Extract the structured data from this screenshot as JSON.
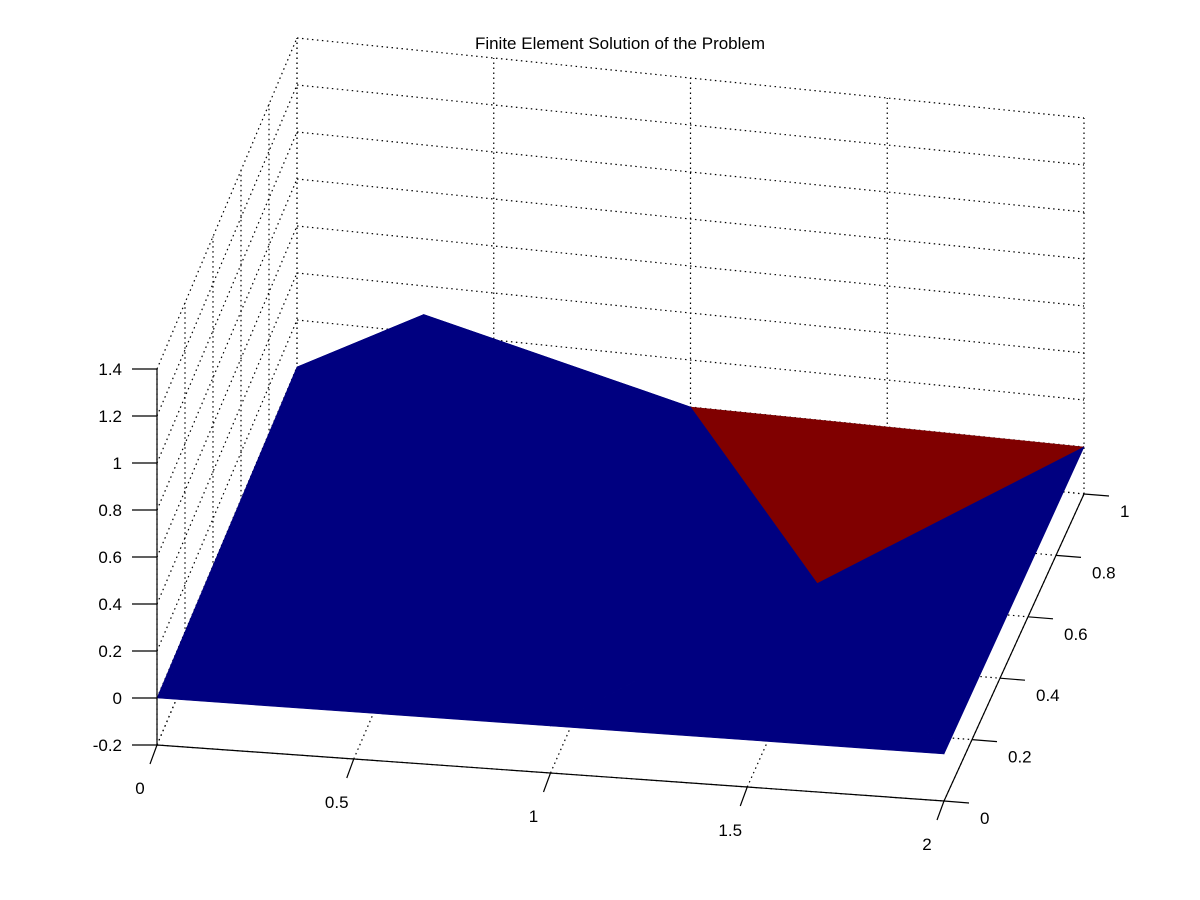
{
  "chart_data": {
    "type": "surface",
    "title": "Finite Element Solution of the Problem",
    "xlabel": "",
    "ylabel": "",
    "zlabel": "",
    "xlim": [
      0,
      2
    ],
    "ylim": [
      0,
      1
    ],
    "zlim": [
      -0.2,
      1.4
    ],
    "x_ticks": [
      "0",
      "0.5",
      "1",
      "1.5",
      "2"
    ],
    "y_ticks": [
      "0",
      "0.2",
      "0.4",
      "0.6",
      "0.8",
      "1"
    ],
    "z_ticks": [
      "-0.2",
      "0",
      "0.2",
      "0.4",
      "0.6",
      "0.8",
      "1",
      "1.2",
      "1.4"
    ],
    "grid": true,
    "nodes": [
      {
        "x": 0,
        "y": 0,
        "z": 0
      },
      {
        "x": 1,
        "y": 0,
        "z": 0
      },
      {
        "x": 2,
        "y": 0,
        "z": 0
      },
      {
        "x": 0.5,
        "y": 0.5,
        "z": 1
      },
      {
        "x": 1.5,
        "y": 0.5,
        "z": 0
      },
      {
        "x": 0,
        "y": 1,
        "z": 0
      },
      {
        "x": 1,
        "y": 1,
        "z": 0
      },
      {
        "x": 2,
        "y": 1,
        "z": 0
      }
    ],
    "elements": [
      {
        "nodes": [
          0,
          1,
          3
        ],
        "color": "#000080"
      },
      {
        "nodes": [
          1,
          4,
          3
        ],
        "color": "#000080"
      },
      {
        "nodes": [
          3,
          4,
          6
        ],
        "color": "#000080"
      },
      {
        "nodes": [
          0,
          3,
          5
        ],
        "color": "#000080"
      },
      {
        "nodes": [
          3,
          6,
          5
        ],
        "color": "#000080"
      },
      {
        "nodes": [
          1,
          2,
          4
        ],
        "color": "#000080"
      },
      {
        "nodes": [
          2,
          7,
          4
        ],
        "color": "#000080"
      },
      {
        "nodes": [
          4,
          7,
          6
        ],
        "color": "#800000"
      }
    ]
  }
}
